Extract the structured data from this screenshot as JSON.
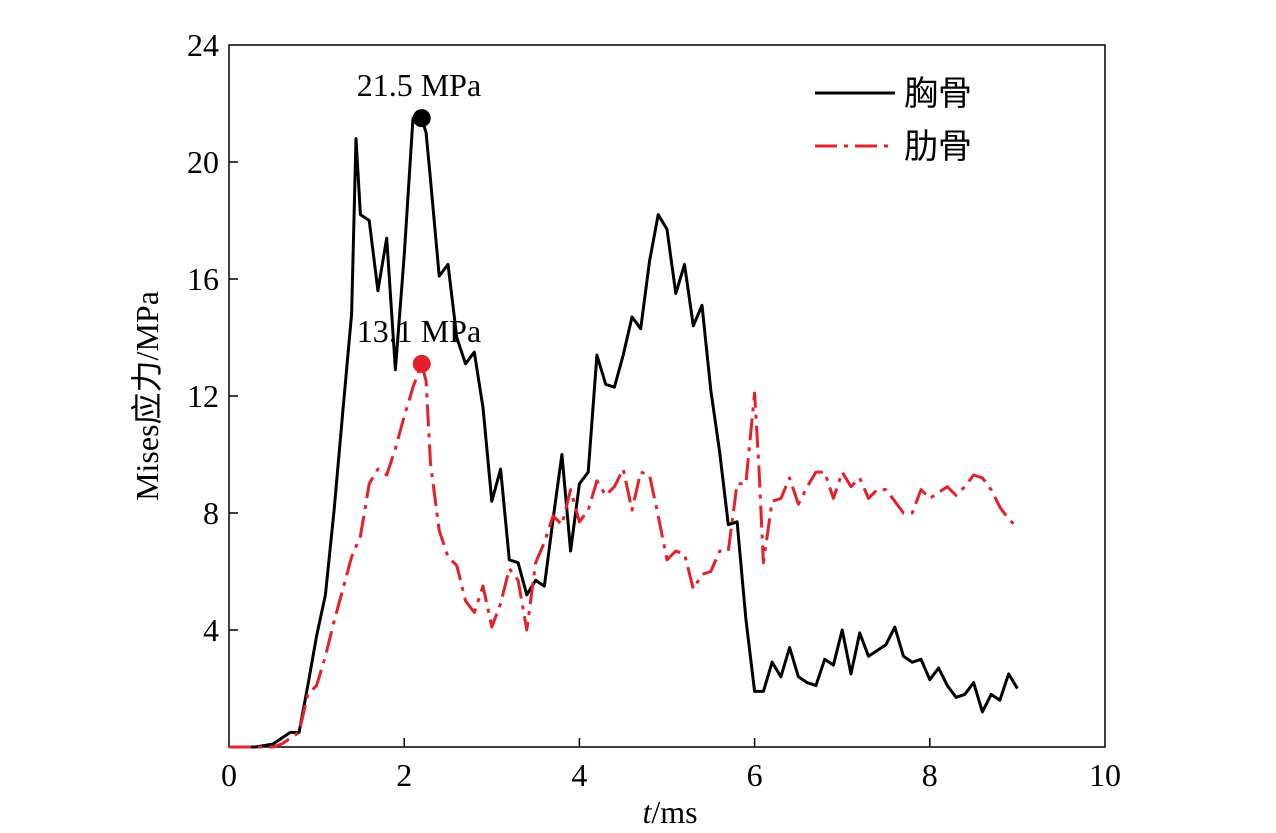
{
  "chart_data": {
    "type": "line",
    "xlabel_italic": "t",
    "xlabel_rest": "/ms",
    "ylabel": "Mises应力/MPa",
    "xlim": [
      0,
      10
    ],
    "ylim": [
      0,
      24
    ],
    "xticks": [
      0,
      2,
      4,
      6,
      8,
      10
    ],
    "xtick_labels": [
      "0",
      "2",
      "4",
      "6",
      "8",
      "10"
    ],
    "yticks": [
      4,
      8,
      12,
      16,
      20,
      24
    ],
    "ytick_labels": [
      "4",
      "8",
      "12",
      "16",
      "20",
      "24"
    ],
    "grid": false,
    "legend_position": "top-right",
    "series": [
      {
        "name": "胸骨",
        "color": "#000000",
        "style": "solid",
        "x": [
          0,
          0.3,
          0.5,
          0.6,
          0.7,
          0.8,
          0.9,
          1.0,
          1.1,
          1.2,
          1.3,
          1.4,
          1.45,
          1.5,
          1.6,
          1.7,
          1.8,
          1.9,
          2.0,
          2.1,
          2.2,
          2.25,
          2.3,
          2.4,
          2.5,
          2.6,
          2.7,
          2.8,
          2.9,
          3.0,
          3.1,
          3.2,
          3.3,
          3.4,
          3.5,
          3.6,
          3.7,
          3.8,
          3.9,
          4.0,
          4.1,
          4.2,
          4.3,
          4.4,
          4.5,
          4.6,
          4.7,
          4.8,
          4.9,
          5.0,
          5.1,
          5.2,
          5.3,
          5.4,
          5.5,
          5.6,
          5.7,
          5.8,
          5.9,
          6.0,
          6.1,
          6.2,
          6.3,
          6.4,
          6.5,
          6.6,
          6.7,
          6.8,
          6.9,
          7.0,
          7.1,
          7.2,
          7.3,
          7.4,
          7.5,
          7.6,
          7.7,
          7.8,
          7.9,
          8.0,
          8.1,
          8.2,
          8.3,
          8.4,
          8.5,
          8.6,
          8.7,
          8.8,
          8.9,
          9.0
        ],
        "y": [
          0,
          0,
          0.1,
          0.3,
          0.5,
          0.5,
          2.1,
          3.8,
          5.2,
          8.1,
          11.5,
          14.8,
          20.8,
          18.2,
          18.0,
          15.6,
          17.4,
          12.9,
          16.8,
          21.5,
          21.5,
          21.0,
          19.4,
          16.1,
          16.5,
          14.0,
          13.1,
          13.5,
          11.6,
          8.4,
          9.5,
          6.4,
          6.3,
          5.2,
          5.7,
          5.5,
          7.8,
          10.0,
          6.7,
          9.0,
          9.4,
          13.4,
          12.4,
          12.3,
          13.4,
          14.7,
          14.3,
          16.6,
          18.2,
          17.7,
          15.5,
          16.5,
          14.4,
          15.1,
          12.2,
          10.1,
          7.6,
          7.7,
          4.4,
          1.9,
          1.9,
          2.9,
          2.4,
          3.4,
          2.4,
          2.2,
          2.1,
          3.0,
          2.8,
          4.0,
          2.5,
          3.9,
          3.1,
          3.3,
          3.5,
          4.1,
          3.1,
          2.9,
          3.0,
          2.3,
          2.7,
          2.1,
          1.7,
          1.8,
          2.2,
          1.2,
          1.8,
          1.6,
          2.5,
          2.0
        ]
      },
      {
        "name": "肋骨",
        "color": "#e4202a",
        "style": "dashdot",
        "x": [
          0,
          0.5,
          0.6,
          0.7,
          0.8,
          0.9,
          1.0,
          1.1,
          1.2,
          1.3,
          1.4,
          1.5,
          1.6,
          1.7,
          1.8,
          1.9,
          2.0,
          2.1,
          2.2,
          2.25,
          2.3,
          2.4,
          2.5,
          2.6,
          2.7,
          2.8,
          2.9,
          3.0,
          3.1,
          3.2,
          3.3,
          3.4,
          3.5,
          3.6,
          3.7,
          3.8,
          3.9,
          4.0,
          4.1,
          4.2,
          4.3,
          4.4,
          4.5,
          4.6,
          4.7,
          4.8,
          4.9,
          5.0,
          5.1,
          5.2,
          5.3,
          5.4,
          5.5,
          5.6,
          5.7,
          5.8,
          5.9,
          6.0,
          6.05,
          6.1,
          6.2,
          6.3,
          6.4,
          6.5,
          6.6,
          6.7,
          6.8,
          6.9,
          7.0,
          7.1,
          7.2,
          7.3,
          7.4,
          7.5,
          7.6,
          7.7,
          7.8,
          7.9,
          8.0,
          8.1,
          8.2,
          8.3,
          8.4,
          8.5,
          8.6,
          8.7,
          8.8,
          8.9,
          9.0
        ],
        "y": [
          0,
          0,
          0.1,
          0.3,
          0.5,
          1.8,
          2.1,
          3.1,
          4.3,
          5.4,
          6.5,
          7.2,
          9.0,
          9.5,
          9.3,
          10.2,
          11.3,
          12.3,
          13.1,
          12.5,
          9.7,
          7.4,
          6.5,
          6.2,
          5.0,
          4.6,
          5.5,
          4.1,
          4.9,
          6.1,
          5.7,
          4.0,
          6.3,
          7.0,
          7.9,
          7.6,
          8.8,
          7.7,
          8.1,
          9.1,
          8.6,
          8.9,
          9.5,
          8.1,
          9.4,
          9.3,
          7.9,
          6.4,
          6.7,
          6.6,
          5.4,
          5.9,
          6.0,
          6.7,
          6.7,
          9.0,
          9.0,
          12.1,
          9.5,
          6.3,
          8.4,
          8.5,
          9.2,
          8.3,
          8.9,
          9.4,
          9.4,
          8.5,
          9.4,
          8.9,
          9.2,
          8.5,
          8.8,
          8.8,
          8.4,
          8.0,
          8.0,
          8.8,
          8.5,
          8.7,
          8.9,
          8.6,
          8.9,
          9.3,
          9.2,
          8.8,
          8.2,
          7.8,
          7.5
        ]
      }
    ],
    "annotations": [
      {
        "text": "21.5 MPa",
        "x": 2.2,
        "y": 21.5,
        "color": "#000000"
      },
      {
        "text": "13.1 MPa",
        "x": 2.2,
        "y": 13.1,
        "color": "#e4202a"
      }
    ]
  }
}
